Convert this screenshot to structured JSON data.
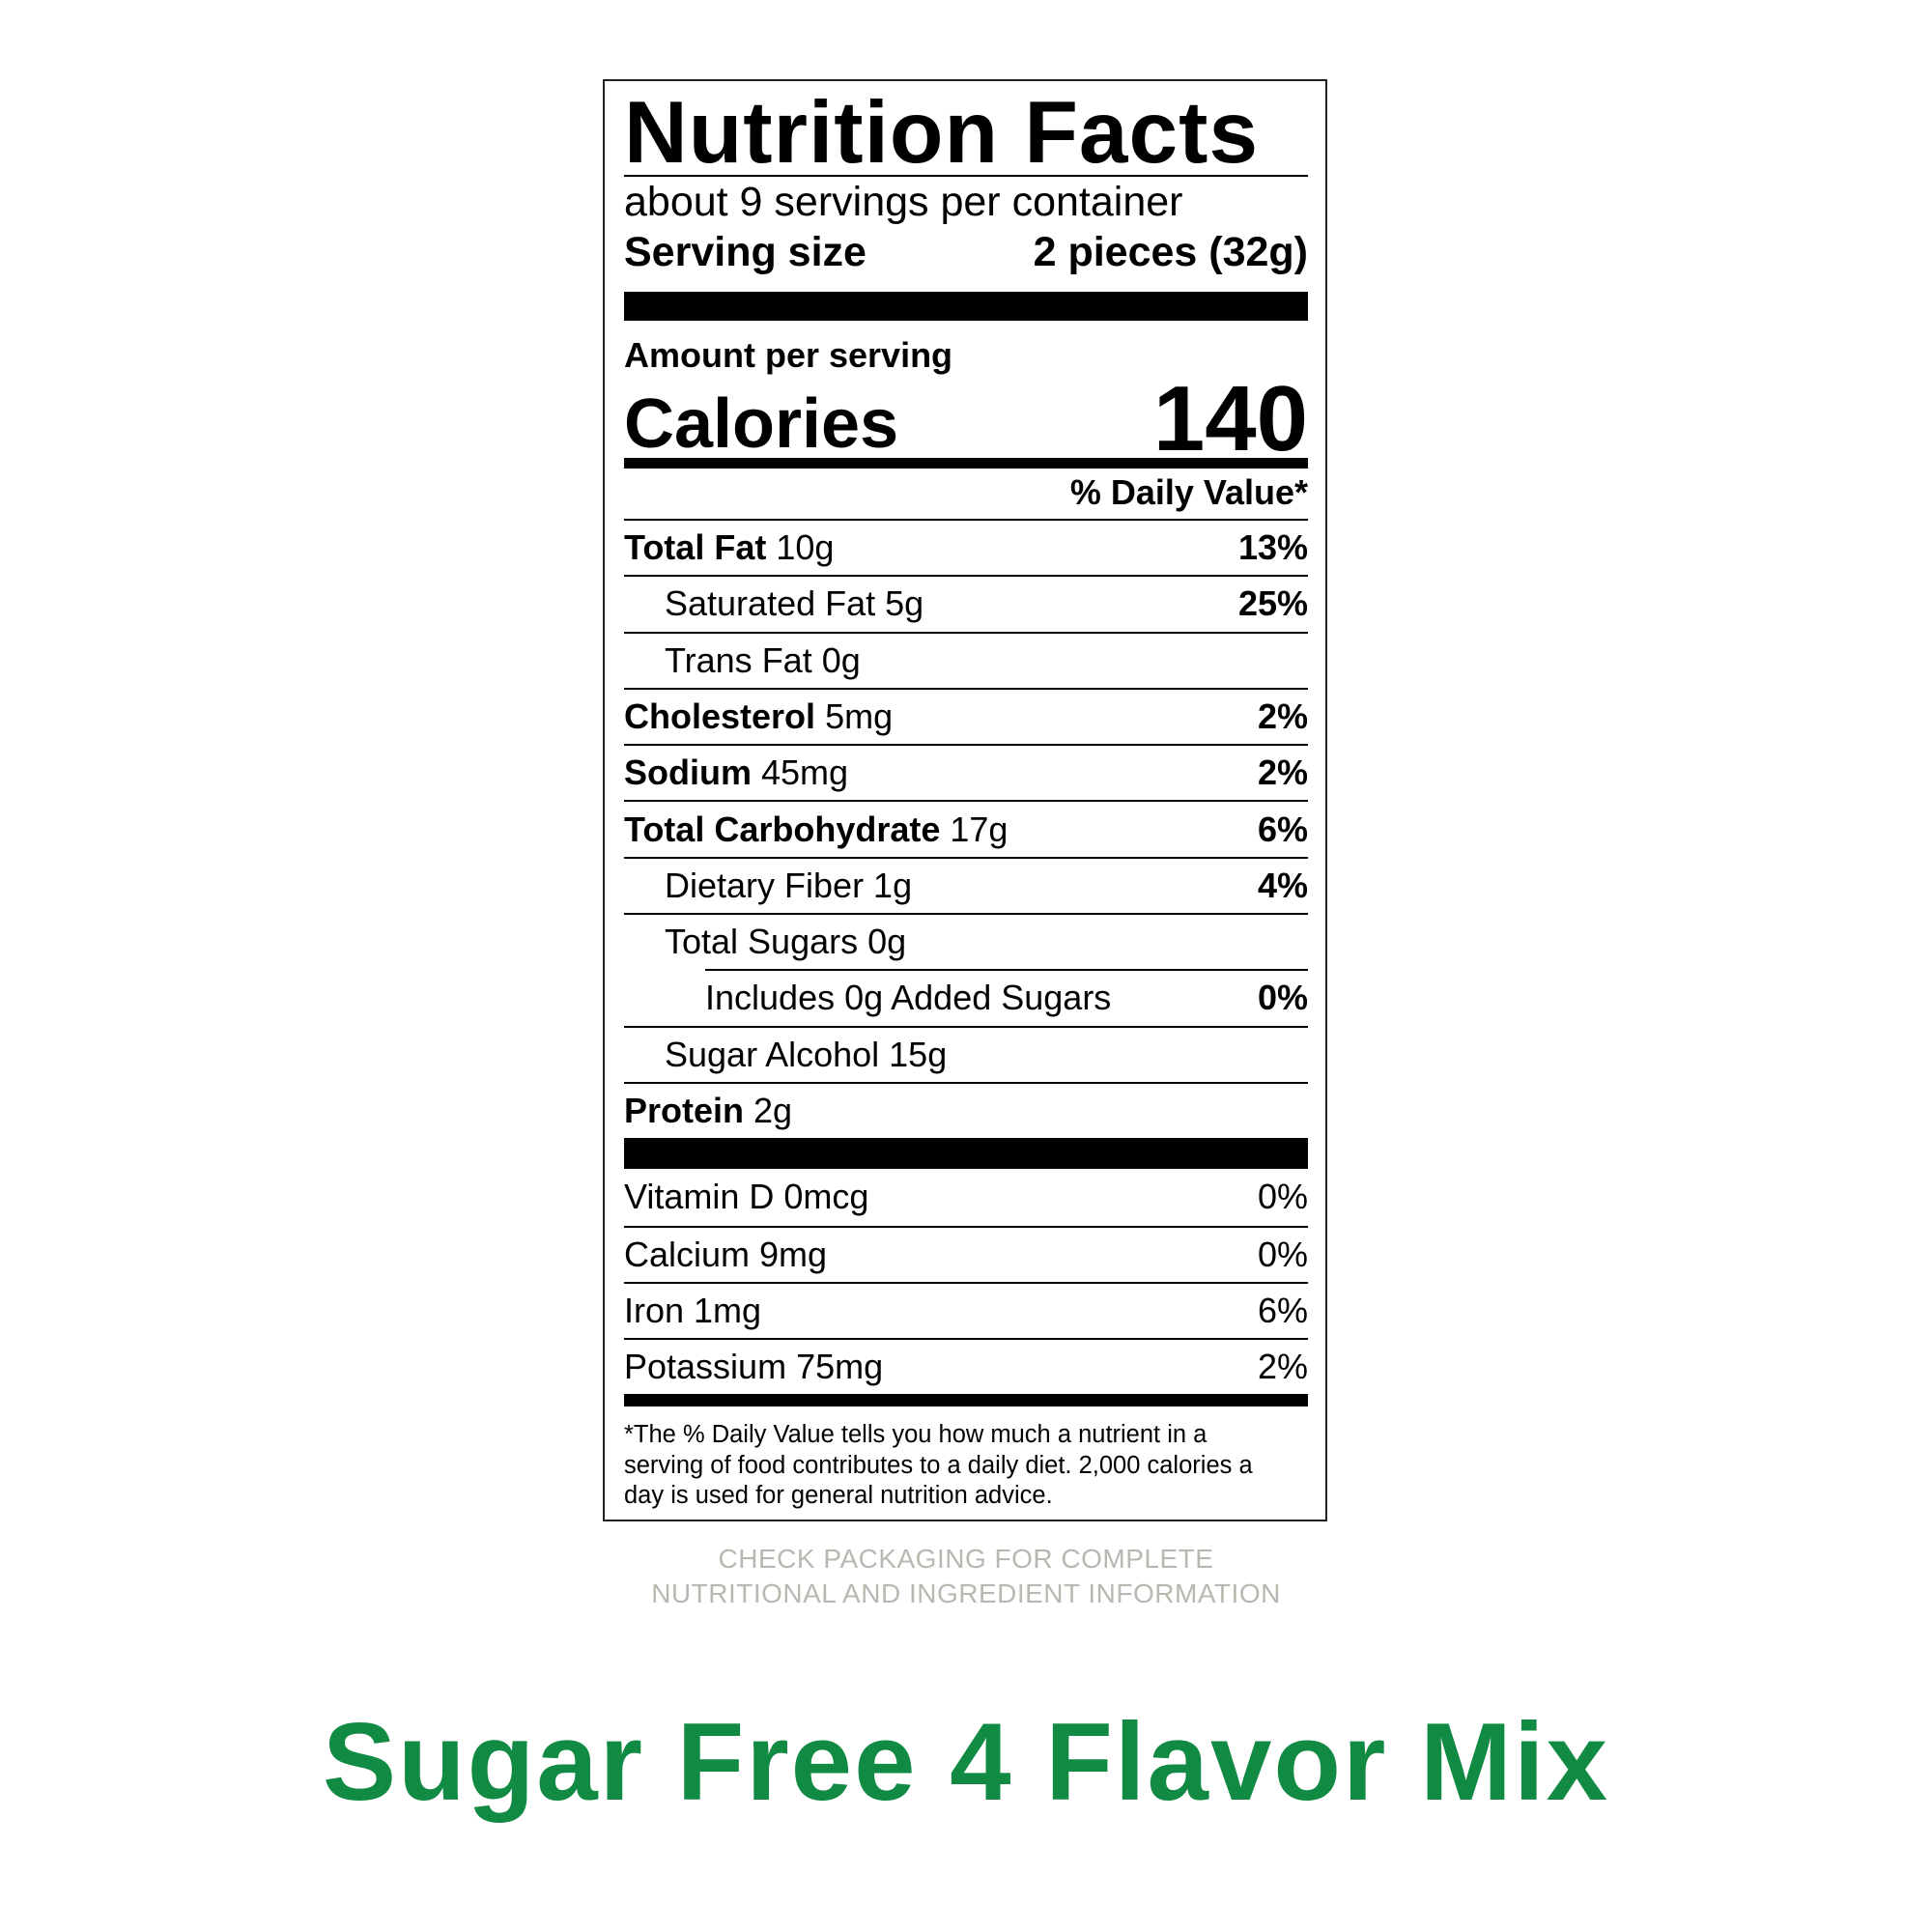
{
  "label": {
    "title": "Nutrition Facts",
    "servings_per_container": "about 9 servings per container",
    "serving_size_label": "Serving size",
    "serving_size_value": "2 pieces (32g)",
    "amount_per_serving": "Amount per serving",
    "calories_label": "Calories",
    "calories_value": "140",
    "daily_value_header": "% Daily Value*",
    "nutrients": [
      {
        "name": "Total Fat",
        "amount": "10g",
        "dv": "13%"
      },
      {
        "name": "Saturated Fat 5g",
        "dv": "25%"
      },
      {
        "name": "Trans Fat 0g",
        "dv": ""
      },
      {
        "name": "Cholesterol",
        "amount": "5mg",
        "dv": "2%"
      },
      {
        "name": "Sodium",
        "amount": "45mg",
        "dv": "2%"
      },
      {
        "name": "Total Carbohydrate",
        "amount": "17g",
        "dv": "6%"
      },
      {
        "name": "Dietary Fiber 1g",
        "dv": "4%"
      },
      {
        "name": "Total Sugars 0g",
        "dv": ""
      },
      {
        "name": "Includes 0g Added Sugars",
        "dv": "0%"
      },
      {
        "name": "Sugar Alcohol 15g",
        "dv": ""
      },
      {
        "name": "Protein",
        "amount": "2g",
        "dv": ""
      }
    ],
    "vitamins": [
      {
        "name": "Vitamin D 0mcg",
        "dv": "0%"
      },
      {
        "name": "Calcium 9mg",
        "dv": "0%"
      },
      {
        "name": "Iron 1mg",
        "dv": "6%"
      },
      {
        "name": "Potassium 75mg",
        "dv": "2%"
      }
    ],
    "footnote_lines": [
      "*The % Daily Value tells you how much a nutrient in a",
      "serving of food contributes to a daily diet. 2,000 calories a",
      "day is used for general nutrition advice."
    ]
  },
  "notice_lines": [
    "CHECK PACKAGING FOR COMPLETE",
    "NUTRITIONAL AND INGREDIENT INFORMATION"
  ],
  "product_name": "Sugar Free 4 Flavor Mix",
  "colors": {
    "brand_green": "#118a44",
    "notice_gray": "#b9b8b0"
  }
}
